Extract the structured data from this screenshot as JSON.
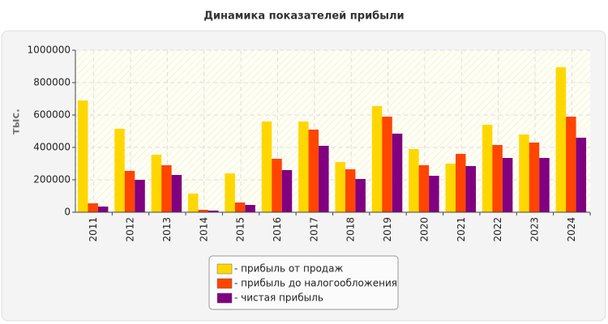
{
  "chart_data": {
    "type": "bar",
    "title": "Динамика показателей прибыли",
    "y_label": "тыс.",
    "categories": [
      "2011",
      "2012",
      "2013",
      "2014",
      "2015",
      "2016",
      "2017",
      "2018",
      "2019",
      "2020",
      "2021",
      "2022",
      "2023",
      "2024"
    ],
    "series": [
      {
        "name": "- прибыль от продаж",
        "color": "#ffd700",
        "values": [
          690000,
          515000,
          355000,
          115000,
          240000,
          560000,
          560000,
          310000,
          655000,
          390000,
          300000,
          540000,
          480000,
          895000
        ]
      },
      {
        "name": "- прибыль до налогообложения",
        "color": "#ff4500",
        "values": [
          55000,
          255000,
          290000,
          15000,
          60000,
          330000,
          510000,
          265000,
          590000,
          290000,
          360000,
          415000,
          430000,
          590000
        ]
      },
      {
        "name": "- чистая прибыль",
        "color": "#800080",
        "values": [
          35000,
          200000,
          230000,
          10000,
          45000,
          260000,
          410000,
          205000,
          485000,
          225000,
          285000,
          335000,
          335000,
          460000
        ]
      }
    ],
    "ylim": [
      0,
      1000000
    ],
    "yticks": [
      0,
      200000,
      400000,
      600000,
      800000,
      1000000
    ],
    "grid": true
  }
}
